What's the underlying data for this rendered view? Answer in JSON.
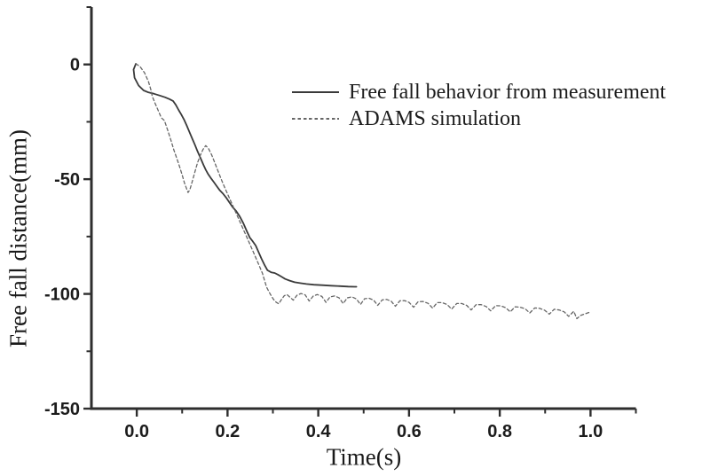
{
  "figure": {
    "background": "#ffffff",
    "ink": "#1a1a1a",
    "axis_color": "#2e2e2e"
  },
  "chart_data": {
    "type": "line",
    "title": "",
    "xlabel": "Time(s)",
    "ylabel": "Free fall distance(mm)",
    "xlim": [
      -0.1,
      1.1
    ],
    "ylim": [
      -150,
      25
    ],
    "grid": false,
    "legend_position": "inside-top-right",
    "x_ticks_major": {
      "values": [
        0.0,
        0.2,
        0.4,
        0.6,
        0.8,
        1.0
      ],
      "labels": [
        "0.0",
        "0.2",
        "0.4",
        "0.6",
        "0.8",
        "1.0"
      ]
    },
    "x_ticks_minor": [
      0.1,
      0.3,
      0.5,
      0.7,
      0.9,
      1.1
    ],
    "y_ticks_major": {
      "values": [
        0,
        -50,
        -100,
        -150
      ],
      "labels": [
        "0",
        "-50",
        "-100",
        "-150"
      ]
    },
    "y_ticks_minor": [
      25,
      -25,
      -75,
      -125
    ],
    "series": [
      {
        "name": "Free fall behavior from measurement",
        "style": "solid",
        "color": "#3a3a3a",
        "points": [
          [
            -0.002,
            0.3
          ],
          [
            -0.007,
            -2.2
          ],
          [
            -0.005,
            -5.8
          ],
          [
            0.004,
            -9.2
          ],
          [
            0.015,
            -11.3
          ],
          [
            0.026,
            -12.2
          ],
          [
            0.038,
            -12.8
          ],
          [
            0.05,
            -13.5
          ],
          [
            0.062,
            -14.3
          ],
          [
            0.072,
            -15.1
          ],
          [
            0.08,
            -15.9
          ],
          [
            0.086,
            -17.6
          ],
          [
            0.092,
            -19.8
          ],
          [
            0.098,
            -21.8
          ],
          [
            0.104,
            -24.0
          ],
          [
            0.11,
            -26.6
          ],
          [
            0.116,
            -29.4
          ],
          [
            0.122,
            -32.2
          ],
          [
            0.128,
            -35.0
          ],
          [
            0.134,
            -37.9
          ],
          [
            0.14,
            -40.6
          ],
          [
            0.147,
            -43.8
          ],
          [
            0.152,
            -45.9
          ],
          [
            0.157,
            -47.7
          ],
          [
            0.163,
            -49.5
          ],
          [
            0.17,
            -51.3
          ],
          [
            0.176,
            -53.0
          ],
          [
            0.183,
            -54.9
          ],
          [
            0.19,
            -56.3
          ],
          [
            0.197,
            -58.0
          ],
          [
            0.204,
            -60.1
          ],
          [
            0.211,
            -62.1
          ],
          [
            0.219,
            -63.9
          ],
          [
            0.227,
            -66.3
          ],
          [
            0.235,
            -69.3
          ],
          [
            0.242,
            -72.4
          ],
          [
            0.249,
            -75.4
          ],
          [
            0.256,
            -77.2
          ],
          [
            0.262,
            -78.9
          ],
          [
            0.269,
            -82.1
          ],
          [
            0.275,
            -84.7
          ],
          [
            0.281,
            -87.2
          ],
          [
            0.288,
            -89.7
          ],
          [
            0.296,
            -90.6
          ],
          [
            0.304,
            -90.9
          ],
          [
            0.311,
            -91.6
          ],
          [
            0.318,
            -92.4
          ],
          [
            0.327,
            -93.5
          ],
          [
            0.337,
            -94.2
          ],
          [
            0.348,
            -94.9
          ],
          [
            0.36,
            -95.3
          ],
          [
            0.374,
            -95.7
          ],
          [
            0.39,
            -96.0
          ],
          [
            0.408,
            -96.2
          ],
          [
            0.428,
            -96.4
          ],
          [
            0.448,
            -96.6
          ],
          [
            0.466,
            -96.8
          ],
          [
            0.48,
            -96.9
          ],
          [
            0.484,
            -96.9
          ]
        ]
      },
      {
        "name": "ADAMS simulation",
        "style": "dashed",
        "color": "#666666",
        "points": [
          [
            -0.002,
            0.3
          ],
          [
            0.007,
            -0.9
          ],
          [
            0.017,
            -3.6
          ],
          [
            0.026,
            -7.6
          ],
          [
            0.031,
            -11.0
          ],
          [
            0.034,
            -13.8
          ],
          [
            0.04,
            -16.8
          ],
          [
            0.047,
            -20.0
          ],
          [
            0.054,
            -23.2
          ],
          [
            0.061,
            -24.5
          ],
          [
            0.068,
            -28.6
          ],
          [
            0.075,
            -32.9
          ],
          [
            0.082,
            -37.4
          ],
          [
            0.088,
            -40.8
          ],
          [
            0.094,
            -44.4
          ],
          [
            0.1,
            -48.2
          ],
          [
            0.105,
            -51.6
          ],
          [
            0.11,
            -54.3
          ],
          [
            0.113,
            -55.8
          ],
          [
            0.117,
            -54.6
          ],
          [
            0.122,
            -51.2
          ],
          [
            0.128,
            -46.8
          ],
          [
            0.134,
            -42.8
          ],
          [
            0.14,
            -39.6
          ],
          [
            0.146,
            -37.0
          ],
          [
            0.152,
            -35.4
          ],
          [
            0.158,
            -36.6
          ],
          [
            0.165,
            -39.4
          ],
          [
            0.172,
            -42.9
          ],
          [
            0.18,
            -46.9
          ],
          [
            0.188,
            -50.9
          ],
          [
            0.196,
            -54.6
          ],
          [
            0.205,
            -58.6
          ],
          [
            0.214,
            -62.6
          ],
          [
            0.223,
            -66.6
          ],
          [
            0.232,
            -70.6
          ],
          [
            0.241,
            -74.6
          ],
          [
            0.25,
            -78.6
          ],
          [
            0.259,
            -82.7
          ],
          [
            0.268,
            -86.8
          ],
          [
            0.277,
            -91.0
          ],
          [
            0.286,
            -97.0
          ],
          [
            0.294,
            -100.0
          ],
          [
            0.301,
            -102.3
          ],
          [
            0.307,
            -103.6
          ],
          [
            0.313,
            -104.3
          ],
          [
            0.319,
            -102.4
          ],
          [
            0.325,
            -100.8
          ],
          [
            0.331,
            -100.3
          ],
          [
            0.345,
            -102.7
          ],
          [
            0.353,
            -100.6
          ],
          [
            0.362,
            -99.8
          ],
          [
            0.371,
            -100.4
          ],
          [
            0.38,
            -103.1
          ],
          [
            0.389,
            -100.9
          ],
          [
            0.398,
            -100.3
          ],
          [
            0.408,
            -101.1
          ],
          [
            0.417,
            -103.7
          ],
          [
            0.426,
            -101.3
          ],
          [
            0.436,
            -100.9
          ],
          [
            0.446,
            -101.7
          ],
          [
            0.455,
            -104.2
          ],
          [
            0.464,
            -101.7
          ],
          [
            0.474,
            -101.3
          ],
          [
            0.484,
            -102.2
          ],
          [
            0.493,
            -104.6
          ],
          [
            0.502,
            -102.1
          ],
          [
            0.512,
            -101.9
          ],
          [
            0.522,
            -102.7
          ],
          [
            0.531,
            -105.0
          ],
          [
            0.541,
            -102.6
          ],
          [
            0.551,
            -102.4
          ],
          [
            0.561,
            -103.2
          ],
          [
            0.57,
            -105.4
          ],
          [
            0.58,
            -103.0
          ],
          [
            0.59,
            -102.9
          ],
          [
            0.6,
            -103.7
          ],
          [
            0.61,
            -105.8
          ],
          [
            0.62,
            -103.4
          ],
          [
            0.631,
            -103.3
          ],
          [
            0.642,
            -104.1
          ],
          [
            0.652,
            -106.2
          ],
          [
            0.662,
            -103.8
          ],
          [
            0.673,
            -103.8
          ],
          [
            0.684,
            -104.6
          ],
          [
            0.694,
            -106.6
          ],
          [
            0.705,
            -104.2
          ],
          [
            0.716,
            -104.2
          ],
          [
            0.727,
            -105.0
          ],
          [
            0.737,
            -107.0
          ],
          [
            0.748,
            -104.7
          ],
          [
            0.759,
            -104.7
          ],
          [
            0.77,
            -105.5
          ],
          [
            0.78,
            -107.4
          ],
          [
            0.791,
            -105.1
          ],
          [
            0.802,
            -105.2
          ],
          [
            0.813,
            -106.0
          ],
          [
            0.823,
            -107.8
          ],
          [
            0.834,
            -105.6
          ],
          [
            0.845,
            -105.8
          ],
          [
            0.856,
            -106.5
          ],
          [
            0.866,
            -108.3
          ],
          [
            0.877,
            -106.1
          ],
          [
            0.888,
            -106.3
          ],
          [
            0.899,
            -107.1
          ],
          [
            0.909,
            -108.8
          ],
          [
            0.92,
            -106.7
          ],
          [
            0.931,
            -107.0
          ],
          [
            0.942,
            -107.8
          ],
          [
            0.952,
            -109.8
          ],
          [
            0.963,
            -107.6
          ],
          [
            0.97,
            -110.8
          ],
          [
            0.978,
            -109.4
          ],
          [
            0.985,
            -108.9
          ],
          [
            0.993,
            -108.3
          ],
          [
            1.0,
            -107.9
          ]
        ]
      }
    ]
  }
}
